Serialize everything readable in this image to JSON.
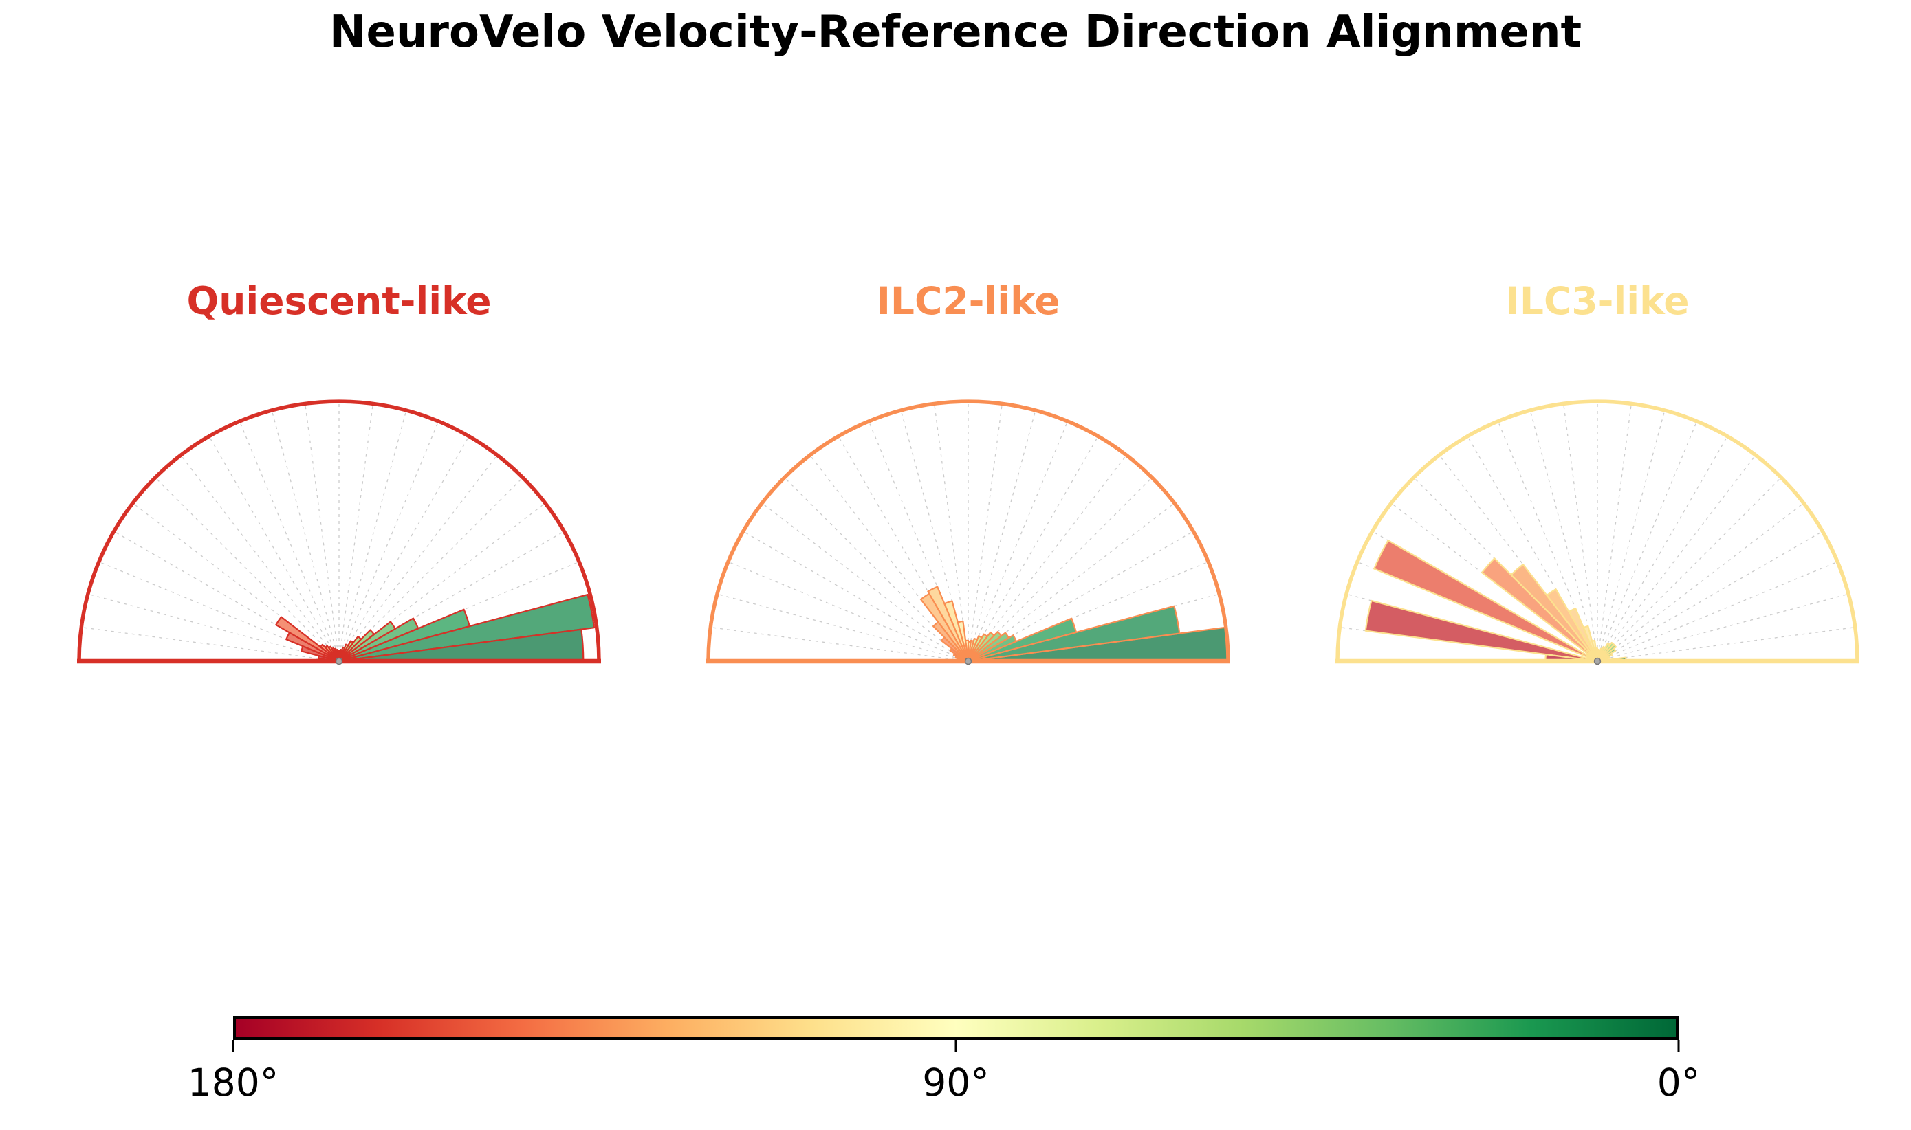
{
  "figure_title": "NeuroVelo Velocity-Reference Direction Alignment",
  "chart_data": {
    "type": "polar_histogram_row",
    "subtype": "half_rose_semicircle",
    "theta_range_deg": [
      0,
      180
    ],
    "bin_width_deg": 7.5,
    "bin_centers_deg": [
      3.75,
      11.25,
      18.75,
      26.25,
      33.75,
      41.25,
      48.75,
      56.25,
      63.75,
      71.25,
      78.75,
      86.25,
      93.75,
      101.25,
      108.75,
      116.25,
      123.75,
      131.25,
      138.75,
      146.25,
      153.75,
      161.25,
      168.75,
      176.25
    ],
    "bin_colors": [
      "#05723c",
      "#108647",
      "#1d9a51",
      "#3da959",
      "#5cb861",
      "#79c565",
      "#93d168",
      "#acdc6e",
      "#c2e57c",
      "#d7ee8a",
      "#e7f59f",
      "#f7fcb4",
      "#fff8b4",
      "#feec9f",
      "#fede89",
      "#fdc978",
      "#fdb466",
      "#fa9b58",
      "#f7804c",
      "#f06540",
      "#e44c34",
      "#d83428",
      "#c41e27",
      "#b00a26"
    ],
    "fill_alpha": 0.72,
    "rmax": 1.0,
    "grid": {
      "step_deg": 7.5,
      "color": "#cccccc",
      "style": "dashed",
      "circular_rings": false
    },
    "series": [
      {
        "name": "Quiescent-like",
        "accent": "#d73027",
        "values": [
          0.94,
          0.99,
          0.52,
          0.33,
          0.25,
          0.17,
          0.12,
          0.09,
          0.07,
          0.055,
          0.045,
          0.04,
          0.04,
          0.045,
          0.05,
          0.055,
          0.065,
          0.075,
          0.09,
          0.28,
          0.22,
          0.15,
          0.08,
          0.05
        ]
      },
      {
        "name": "ILC2-like",
        "accent": "#f98e52",
        "values": [
          1.0,
          0.82,
          0.43,
          0.2,
          0.18,
          0.16,
          0.14,
          0.12,
          0.105,
          0.09,
          0.08,
          0.075,
          0.08,
          0.155,
          0.24,
          0.31,
          0.3,
          0.19,
          0.13,
          0.08,
          0.06,
          0.05,
          0.04,
          0.04
        ]
      },
      {
        "name": "ILC3-like",
        "accent": "#fce18f",
        "values": [
          0.11,
          0.04,
          0.05,
          0.06,
          0.08,
          0.09,
          0.09,
          0.08,
          0.06,
          0.05,
          0.04,
          0.045,
          0.05,
          0.08,
          0.14,
          0.22,
          0.32,
          0.47,
          0.56,
          0.05,
          0.93,
          0.04,
          0.9,
          0.2
        ]
      }
    ],
    "colorbar": {
      "cmap": "RdYlGn",
      "orientation": "horizontal",
      "stops": [
        "#a50026",
        "#d73027",
        "#f46d43",
        "#fdae61",
        "#fee08b",
        "#ffffbf",
        "#d9ef8b",
        "#a6d96a",
        "#66bd63",
        "#1a9850",
        "#006837"
      ],
      "tick_labels": [
        "180°",
        "90°",
        "0°"
      ],
      "tick_positions": [
        0,
        0.5,
        1
      ]
    }
  }
}
